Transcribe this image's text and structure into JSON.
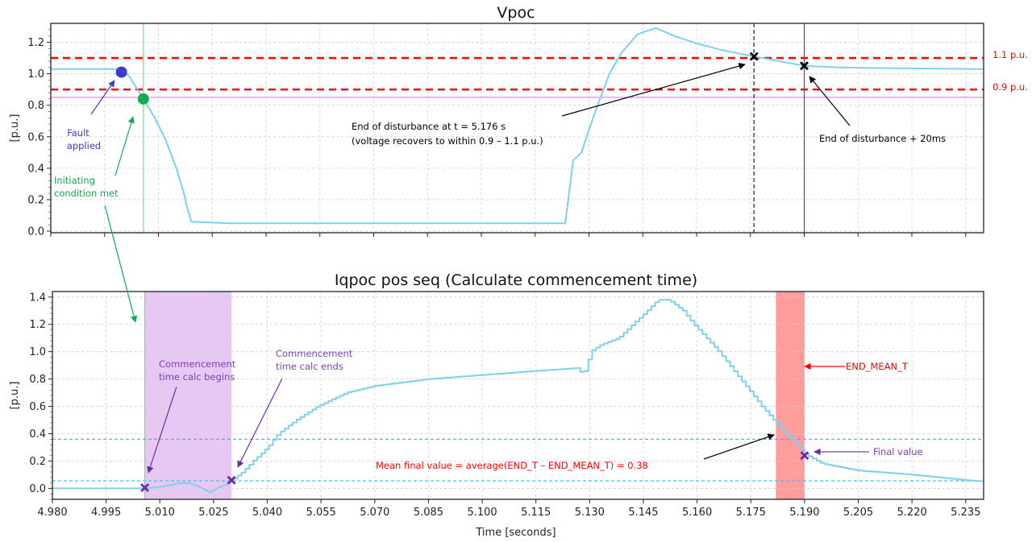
{
  "chart_data": [
    {
      "type": "line",
      "title": "Vpoc",
      "ylabel": "[p.u.]",
      "xlim": [
        4.98,
        5.24
      ],
      "ylim": [
        -0.01,
        1.32
      ],
      "yticks": [
        "0.0",
        "0.2",
        "0.4",
        "0.6",
        "0.8",
        "1.0",
        "1.2"
      ],
      "grid": true,
      "series": [
        {
          "color": "#7fd0ea",
          "x": [
            4.98,
            4.9997,
            5.002,
            5.0055,
            5.009,
            5.012,
            5.015,
            5.017,
            5.018,
            5.0192,
            5.03,
            5.08,
            5.1234,
            5.1256,
            5.1279,
            5.1301,
            5.1324,
            5.1357,
            5.139,
            5.1435,
            5.1458,
            5.1487,
            5.1537,
            5.1604,
            5.1671,
            5.176,
            5.183,
            5.19,
            5.2,
            5.215,
            5.24
          ],
          "y": [
            1.03,
            1.03,
            0.98,
            0.85,
            0.72,
            0.58,
            0.4,
            0.25,
            0.15,
            0.06,
            0.05,
            0.05,
            0.05,
            0.45,
            0.5,
            0.65,
            0.8,
            1.0,
            1.13,
            1.25,
            1.27,
            1.29,
            1.24,
            1.19,
            1.15,
            1.11,
            1.08,
            1.05,
            1.04,
            1.035,
            1.03
          ]
        }
      ],
      "reference_lines": [
        {
          "y": 1.1,
          "label": "1.1 p.u.",
          "color": "#ff0000",
          "style": "dashed"
        },
        {
          "y": 0.9,
          "label": "0.9 p.u.",
          "color": "#ff0000",
          "style": "dashed"
        },
        {
          "y": 0.85,
          "color": "#ee66ee",
          "style": "solid"
        },
        {
          "x": 5.0058,
          "color": "#55ee55",
          "style": "solid"
        },
        {
          "x": 5.176,
          "color": "#555555",
          "style": "dashed"
        },
        {
          "x": 5.19,
          "color": "#ff0000",
          "style": "solid"
        }
      ],
      "markers": [
        {
          "x": 4.9997,
          "y": 1.01,
          "shape": "circle",
          "color": "#3b3bcc"
        },
        {
          "x": 5.0058,
          "y": 0.84,
          "shape": "circle",
          "color": "#11aa55"
        },
        {
          "x": 5.176,
          "y": 1.11,
          "shape": "x",
          "color": "#000000"
        },
        {
          "x": 5.19,
          "y": 1.05,
          "shape": "x",
          "color": "#000000"
        }
      ],
      "annotations": {
        "fault": "Fault applied",
        "fault_l1": "Fault",
        "fault_l2": "applied",
        "init_l1": "Initiating",
        "init_l2": "condition met",
        "end_l1": "End of disturbance at t = 5.176 s",
        "end_l2": "(voltage recovers to within 0.9 – 1.1 p.u.)",
        "end20": "End of disturbance + 20ms",
        "upper": "1.1 p.u.",
        "lower": "0.9 p.u."
      },
      "colors": {
        "fault": "#3b3bcc",
        "init": "#11aa55",
        "limit": "#ff0000",
        "black": "#000000"
      }
    },
    {
      "type": "line",
      "title": "Iqpoc pos seq (Calculate commencement time)",
      "xlabel": "Time [seconds]",
      "ylabel": "[p.u.]",
      "xlim": [
        4.98,
        5.24
      ],
      "ylim": [
        -0.08,
        1.44
      ],
      "xticks": [
        "4.980",
        "4.995",
        "5.010",
        "5.025",
        "5.040",
        "5.055",
        "5.070",
        "5.085",
        "5.100",
        "5.115",
        "5.130",
        "5.145",
        "5.160",
        "5.175",
        "5.190",
        "5.205",
        "5.220",
        "5.235"
      ],
      "yticks": [
        "0.0",
        "0.2",
        "0.4",
        "0.6",
        "0.8",
        "1.0",
        "1.2",
        "1.4"
      ],
      "grid": true,
      "series": [
        {
          "color": "#7fd0ea",
          "x": [
            4.98,
            5.0,
            5.006,
            5.011,
            5.016,
            5.019,
            5.022,
            5.024,
            5.026,
            5.028,
            5.03,
            5.033,
            5.036,
            5.04,
            5.043,
            5.048,
            5.054,
            5.062,
            5.07,
            5.085,
            5.1,
            5.115,
            5.1265,
            5.127,
            5.129,
            5.13,
            5.133,
            5.138,
            5.142,
            5.146,
            5.149,
            5.152,
            5.156,
            5.159,
            5.166,
            5.172,
            5.178,
            5.184,
            5.187,
            5.19,
            5.195,
            5.205,
            5.22,
            5.235,
            5.24
          ],
          "y": [
            0.0,
            0.0,
            0.0,
            0.015,
            0.04,
            0.035,
            0.0,
            -0.03,
            0.0,
            0.02,
            0.06,
            0.12,
            0.2,
            0.3,
            0.4,
            0.5,
            0.6,
            0.7,
            0.75,
            0.8,
            0.83,
            0.86,
            0.88,
            0.85,
            0.86,
            1.0,
            1.05,
            1.1,
            1.2,
            1.3,
            1.38,
            1.38,
            1.3,
            1.2,
            1.0,
            0.8,
            0.6,
            0.42,
            0.35,
            0.25,
            0.18,
            0.13,
            0.1,
            0.06,
            0.05
          ]
        }
      ],
      "reference_lines": [
        {
          "y": 0.36,
          "color": "#5aa0cc",
          "style": "dashed"
        },
        {
          "y": 0.055,
          "color": "#33bbee",
          "style": "dashed"
        },
        {
          "x": 5.0058,
          "color": "#55ee55",
          "style": "solid"
        }
      ],
      "spans": [
        {
          "x0": 5.0058,
          "x1": 5.03,
          "color": "#e6c8f2"
        },
        {
          "x0": 5.182,
          "x1": 5.19,
          "color": "#ff9c9c"
        }
      ],
      "markers": [
        {
          "x": 5.0058,
          "y": 0.005,
          "shape": "x",
          "color": "#6a2aa8"
        },
        {
          "x": 5.03,
          "y": 0.06,
          "shape": "x",
          "color": "#6a2aa8"
        },
        {
          "x": 5.19,
          "y": 0.24,
          "shape": "x",
          "color": "#6a2aa8"
        }
      ],
      "annotations": {
        "begins_l1": "Commencement",
        "begins_l2": "time calc begins",
        "ends_l1": "Commencement",
        "ends_l2": "time calc ends",
        "end_mean": "END_MEAN_T",
        "final": "Final value",
        "mean": "Mean final value = average(END_T – END_MEAN_T) = 0.38"
      },
      "colors": {
        "purple": "#7a3fbf",
        "red": "#ff0000"
      }
    }
  ]
}
